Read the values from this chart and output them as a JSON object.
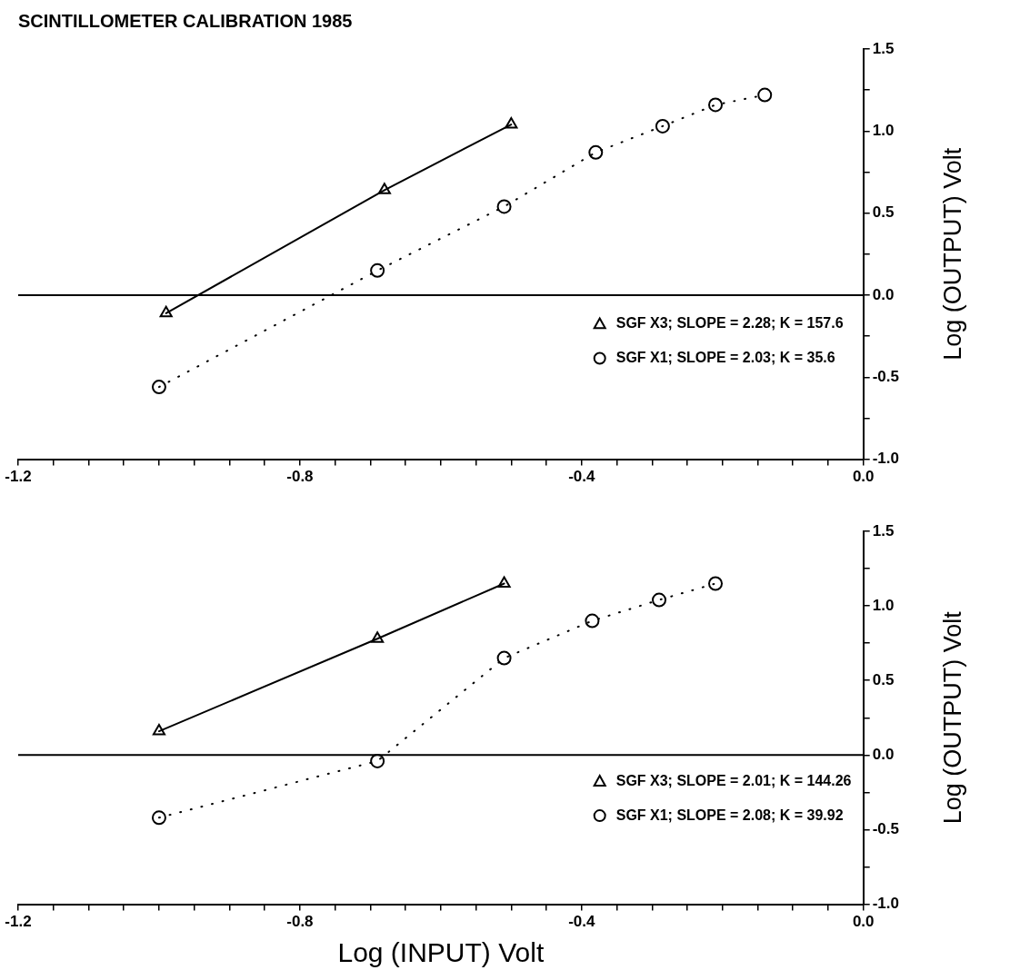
{
  "chart_data": [
    {
      "type": "line",
      "title": "SCINTILLOMETER CALIBRATION 1985",
      "ylabel": "Log (OUTPUT) Volt",
      "xlim": [
        -1.2,
        0.0
      ],
      "ylim": [
        -1.0,
        1.5
      ],
      "xticks": [
        {
          "value": -1.2,
          "label": "-1.2"
        },
        {
          "value": -1.15,
          "label": null
        },
        {
          "value": -1.1,
          "label": null
        },
        {
          "value": -1.05,
          "label": null
        },
        {
          "value": -1.0,
          "label": null
        },
        {
          "value": -0.95,
          "label": null
        },
        {
          "value": -0.9,
          "label": null
        },
        {
          "value": -0.85,
          "label": null
        },
        {
          "value": -0.8,
          "label": "-0.8"
        },
        {
          "value": -0.75,
          "label": null
        },
        {
          "value": -0.7,
          "label": null
        },
        {
          "value": -0.65,
          "label": null
        },
        {
          "value": -0.6,
          "label": null
        },
        {
          "value": -0.55,
          "label": null
        },
        {
          "value": -0.5,
          "label": null
        },
        {
          "value": -0.45,
          "label": null
        },
        {
          "value": -0.4,
          "label": "-0.4"
        },
        {
          "value": -0.35,
          "label": null
        },
        {
          "value": -0.3,
          "label": null
        },
        {
          "value": -0.25,
          "label": null
        },
        {
          "value": -0.2,
          "label": null
        },
        {
          "value": -0.15,
          "label": null
        },
        {
          "value": -0.1,
          "label": null
        },
        {
          "value": -0.05,
          "label": null
        },
        {
          "value": 0.0,
          "label": "0.0"
        }
      ],
      "yticks": [
        {
          "value": -1.0,
          "label": "-1.0"
        },
        {
          "value": -0.75,
          "label": null
        },
        {
          "value": -0.5,
          "label": "-0.5"
        },
        {
          "value": -0.25,
          "label": null
        },
        {
          "value": 0.0,
          "label": "0.0"
        },
        {
          "value": 0.25,
          "label": null
        },
        {
          "value": 0.5,
          "label": "0.5"
        },
        {
          "value": 0.75,
          "label": null
        },
        {
          "value": 1.0,
          "label": "1.0"
        },
        {
          "value": 1.25,
          "label": null
        },
        {
          "value": 1.5,
          "label": "1.5"
        }
      ],
      "grid": false,
      "legend": "right",
      "ref_lines": [
        {
          "axis": "y",
          "value": 0.0,
          "color": "#000000"
        }
      ],
      "series": [
        {
          "name": "SGF X3; SLOPE = 2.28; K = 157.6",
          "color": "#000000",
          "marker": "triangle",
          "line_style": "solid",
          "x": [
            -0.99,
            -0.68,
            -0.5
          ],
          "values": [
            -0.11,
            0.64,
            1.04
          ]
        },
        {
          "name": "SGF X1; SLOPE = 2.03; K = 35.6",
          "color": "#000000",
          "marker": "circle",
          "line_style": "dotted",
          "x": [
            -1.0,
            -0.69,
            -0.51,
            -0.38,
            -0.285,
            -0.21,
            -0.14
          ],
          "values": [
            -0.56,
            0.15,
            0.54,
            0.87,
            1.03,
            1.16,
            1.22
          ]
        }
      ]
    },
    {
      "type": "line",
      "xlabel": "Log (INPUT) Volt",
      "ylabel": "Log (OUTPUT) Volt",
      "xlim": [
        -1.2,
        0.0
      ],
      "ylim": [
        -1.0,
        1.5
      ],
      "xticks": [
        {
          "value": -1.2,
          "label": "-1.2"
        },
        {
          "value": -1.15,
          "label": null
        },
        {
          "value": -1.1,
          "label": null
        },
        {
          "value": -1.05,
          "label": null
        },
        {
          "value": -1.0,
          "label": null
        },
        {
          "value": -0.95,
          "label": null
        },
        {
          "value": -0.9,
          "label": null
        },
        {
          "value": -0.85,
          "label": null
        },
        {
          "value": -0.8,
          "label": "-0.8"
        },
        {
          "value": -0.75,
          "label": null
        },
        {
          "value": -0.7,
          "label": null
        },
        {
          "value": -0.65,
          "label": null
        },
        {
          "value": -0.6,
          "label": null
        },
        {
          "value": -0.55,
          "label": null
        },
        {
          "value": -0.5,
          "label": null
        },
        {
          "value": -0.45,
          "label": null
        },
        {
          "value": -0.4,
          "label": "-0.4"
        },
        {
          "value": -0.35,
          "label": null
        },
        {
          "value": -0.3,
          "label": null
        },
        {
          "value": -0.25,
          "label": null
        },
        {
          "value": -0.2,
          "label": null
        },
        {
          "value": -0.15,
          "label": null
        },
        {
          "value": -0.1,
          "label": null
        },
        {
          "value": -0.05,
          "label": null
        },
        {
          "value": 0.0,
          "label": "0.0"
        }
      ],
      "yticks": [
        {
          "value": -1.0,
          "label": "-1.0"
        },
        {
          "value": -0.75,
          "label": null
        },
        {
          "value": -0.5,
          "label": "-0.5"
        },
        {
          "value": -0.25,
          "label": null
        },
        {
          "value": 0.0,
          "label": "0.0"
        },
        {
          "value": 0.25,
          "label": null
        },
        {
          "value": 0.5,
          "label": "0.5"
        },
        {
          "value": 0.75,
          "label": null
        },
        {
          "value": 1.0,
          "label": "1.0"
        },
        {
          "value": 1.25,
          "label": null
        },
        {
          "value": 1.5,
          "label": "1.5"
        }
      ],
      "grid": false,
      "legend": "right",
      "ref_lines": [
        {
          "axis": "y",
          "value": 0.0,
          "color": "#000000"
        }
      ],
      "series": [
        {
          "name": "SGF X3; SLOPE = 2.01; K = 144.26",
          "color": "#000000",
          "marker": "triangle",
          "line_style": "solid",
          "x": [
            -1.0,
            -0.69,
            -0.51
          ],
          "values": [
            0.16,
            0.78,
            1.15
          ]
        },
        {
          "name": "SGF X1; SLOPE = 2.08; K = 39.92",
          "color": "#000000",
          "marker": "circle",
          "line_style": "dotted",
          "x": [
            -1.0,
            -0.69,
            -0.51,
            -0.385,
            -0.29,
            -0.21
          ],
          "values": [
            -0.42,
            -0.04,
            0.65,
            0.9,
            1.04,
            1.15
          ]
        }
      ]
    }
  ]
}
